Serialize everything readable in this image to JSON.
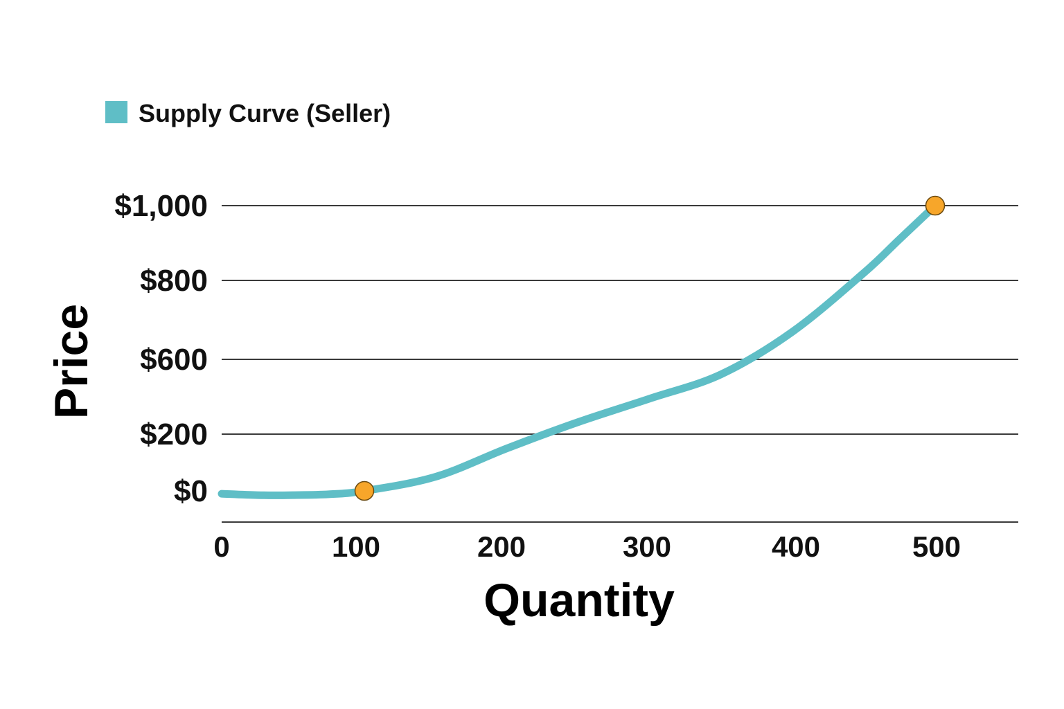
{
  "chart_data": {
    "type": "line",
    "xlabel": "Quantity",
    "ylabel": "Price",
    "legend": {
      "position": "top-left",
      "entries": [
        "Supply Curve (Seller)"
      ]
    },
    "x_ticks": [
      "0",
      "100",
      "200",
      "300",
      "400",
      "500"
    ],
    "y_ticks": [
      "$0",
      "$200",
      "$600",
      "$800",
      "$1,000"
    ],
    "grid": true,
    "series": [
      {
        "name": "Supply Curve (Seller)",
        "color": "#5fbec6",
        "x": [
          0,
          25,
          50,
          75,
          100,
          150,
          200,
          250,
          300,
          350,
          400,
          450,
          475,
          500
        ],
        "y": [
          -10,
          -15,
          -15,
          -12,
          0,
          50,
          150,
          265,
          390,
          520,
          670,
          820,
          910,
          1000
        ]
      }
    ],
    "highlight_points": [
      {
        "x": 100,
        "y": 0,
        "color": "#f7a62a"
      },
      {
        "x": 500,
        "y": 1000,
        "color": "#f7a62a"
      }
    ]
  }
}
